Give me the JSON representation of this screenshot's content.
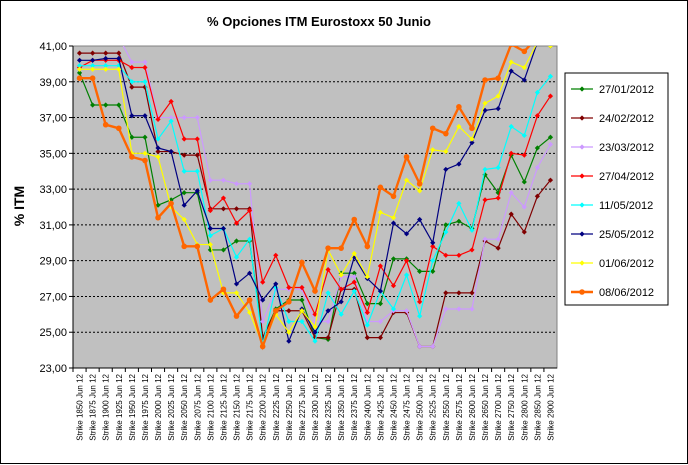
{
  "chart_data": {
    "type": "line",
    "title": "% Opciones ITM Eurostoxx 50 Junio",
    "ylabel": "% ITM",
    "xlabel": "",
    "ylim": [
      23,
      41
    ],
    "yticks": [
      "23,00",
      "25,00",
      "27,00",
      "29,00",
      "31,00",
      "33,00",
      "35,00",
      "37,00",
      "39,00",
      "41,00"
    ],
    "grid": "horizontal-dashed",
    "legend_position": "right",
    "categories": [
      "Strike 1850 Jun 12",
      "Strike 1875 Jun 12",
      "Strike 1900 Jun 12",
      "Strike 1925 Jun 12",
      "Strike 1950 Jun 12",
      "Strike 1975 Jun 12",
      "Strike 2000 Jun 12",
      "Strike 2025 Jun 12",
      "Strike 2050 Jun 12",
      "Strike 2075 Jun 12",
      "Strike 2100 Jun 12",
      "Strike 2125 Jun 12",
      "Strike 2150 Jun 12",
      "Strike 2175 Jun 12",
      "Strike 2200 Jun 12",
      "Strike 2225 Jun 12",
      "Strike 2250 Jun 12",
      "Strike 2275 Jun 12",
      "Strike 2300 Jun 12",
      "Strike 2325 Jun 12",
      "Strike 2350 Jun 12",
      "Strike 2375 Jun 12",
      "Strike 2400 Jun 12",
      "Strike 2425 Jun 12",
      "Strike 2450 Jun 12",
      "Strike 2475 Jun 12",
      "Strike 2500 Jun 12",
      "Strike 2525 Jun 12",
      "Strike 2550 Jun 12",
      "Strike 2575 Jun 12",
      "Strike 2600 Jun 12",
      "Strike 2650 Jun 12",
      "Strike 2700 Jun 12",
      "Strike 2750 Jun 12",
      "Strike 2800 Jun 12",
      "Strike 2850 Jun 12",
      "Strike 2900 Jun 12"
    ],
    "series": [
      {
        "name": "27/01/2012",
        "color": "#008000",
        "marker": "diamond",
        "width": 1.2,
        "values": [
          39.5,
          37.7,
          37.7,
          37.7,
          35.9,
          35.9,
          32.1,
          32.4,
          32.8,
          32.8,
          29.6,
          29.6,
          30.1,
          30.1,
          24.7,
          26.3,
          26.8,
          26.8,
          24.7,
          24.6,
          28.3,
          28.3,
          26.6,
          26.6,
          29.1,
          29.1,
          28.4,
          28.4,
          31.0,
          31.2,
          30.8,
          33.8,
          32.8,
          34.9,
          33.4,
          35.3,
          35.9
        ]
      },
      {
        "name": "24/02/2012",
        "color": "#800000",
        "marker": "diamond",
        "width": 1.2,
        "values": [
          40.6,
          40.6,
          40.6,
          40.6,
          38.7,
          38.7,
          35.1,
          35.1,
          34.9,
          34.9,
          31.9,
          31.9,
          31.9,
          31.9,
          24.7,
          26.2,
          26.2,
          26.2,
          24.7,
          24.7,
          27.4,
          27.4,
          24.7,
          24.7,
          26.1,
          26.1,
          24.2,
          24.2,
          27.2,
          27.2,
          27.2,
          30.1,
          29.7,
          31.6,
          30.6,
          32.6,
          33.5
        ]
      },
      {
        "name": "23/03/2012",
        "color": "#CC99FF",
        "marker": "diamond",
        "width": 1.2,
        "values": [
          41.5,
          41.5,
          41.5,
          41.5,
          40.1,
          40.1,
          37.0,
          37.0,
          37.0,
          37.0,
          33.5,
          33.5,
          33.3,
          33.3,
          25.6,
          27.4,
          27.4,
          27.4,
          25.6,
          25.6,
          28.1,
          28.1,
          25.6,
          25.6,
          26.2,
          26.2,
          24.2,
          24.2,
          26.3,
          26.3,
          26.3,
          30.2,
          30.2,
          32.8,
          32.0,
          34.2,
          35.5
        ]
      },
      {
        "name": "27/04/2012",
        "color": "#FF0000",
        "marker": "diamond",
        "width": 1.2,
        "values": [
          39.8,
          40.2,
          40.2,
          40.2,
          39.8,
          39.8,
          36.9,
          37.9,
          35.8,
          35.8,
          31.8,
          32.5,
          31.1,
          31.8,
          27.8,
          29.3,
          27.5,
          27.5,
          26.0,
          28.5,
          27.4,
          27.8,
          26.1,
          28.7,
          27.6,
          29.0,
          26.7,
          29.8,
          29.3,
          29.3,
          29.6,
          32.4,
          32.5,
          35.0,
          34.9,
          37.1,
          38.2
        ]
      },
      {
        "name": "11/05/2012",
        "color": "#00FFFF",
        "marker": "diamond",
        "width": 1.2,
        "values": [
          39.9,
          39.9,
          39.9,
          39.9,
          39.0,
          39.0,
          35.8,
          36.8,
          34.0,
          34.0,
          30.4,
          30.8,
          29.2,
          30.2,
          24.3,
          27.5,
          25.6,
          25.6,
          24.5,
          27.2,
          26.0,
          27.3,
          25.4,
          27.3,
          26.3,
          28.2,
          25.9,
          29.0,
          30.6,
          32.2,
          30.7,
          34.1,
          34.2,
          36.5,
          36.0,
          38.4,
          39.3
        ]
      },
      {
        "name": "25/05/2012",
        "color": "#000080",
        "marker": "diamond",
        "width": 1.2,
        "values": [
          40.2,
          40.2,
          40.3,
          40.3,
          37.1,
          37.1,
          35.3,
          35.1,
          32.1,
          32.9,
          30.8,
          30.8,
          27.7,
          28.3,
          26.8,
          27.7,
          24.5,
          26.3,
          25.0,
          26.2,
          26.7,
          29.2,
          28.0,
          27.3,
          31.1,
          30.5,
          31.3,
          30.0,
          34.1,
          34.4,
          35.6,
          37.4,
          37.5,
          39.6,
          39.1,
          41.2,
          41.0
        ]
      },
      {
        "name": "01/06/2012",
        "color": "#FFFF00",
        "marker": "diamond",
        "width": 1.2,
        "values": [
          39.7,
          39.7,
          39.7,
          39.7,
          35.0,
          35.0,
          34.8,
          32.0,
          31.3,
          29.9,
          29.9,
          27.2,
          27.2,
          26.1,
          24.3,
          26.0,
          25.0,
          26.2,
          25.3,
          29.6,
          28.2,
          29.4,
          28.1,
          31.7,
          31.4,
          33.5,
          32.9,
          35.2,
          35.1,
          36.5,
          35.8,
          37.8,
          38.2,
          40.1,
          39.8,
          41.2,
          41.0
        ]
      },
      {
        "name": "08/06/2012",
        "color": "#FF6600",
        "marker": "circle",
        "width": 2.4,
        "values": [
          39.2,
          39.2,
          36.6,
          36.4,
          34.8,
          34.6,
          31.4,
          32.2,
          29.8,
          29.8,
          26.8,
          27.4,
          25.9,
          26.8,
          24.2,
          26.2,
          26.7,
          28.9,
          27.3,
          29.7,
          29.7,
          31.3,
          29.8,
          33.1,
          32.6,
          34.8,
          33.3,
          36.4,
          36.1,
          37.6,
          36.4,
          39.1,
          39.2,
          41.1,
          40.7,
          41.5,
          41.5
        ]
      }
    ]
  }
}
